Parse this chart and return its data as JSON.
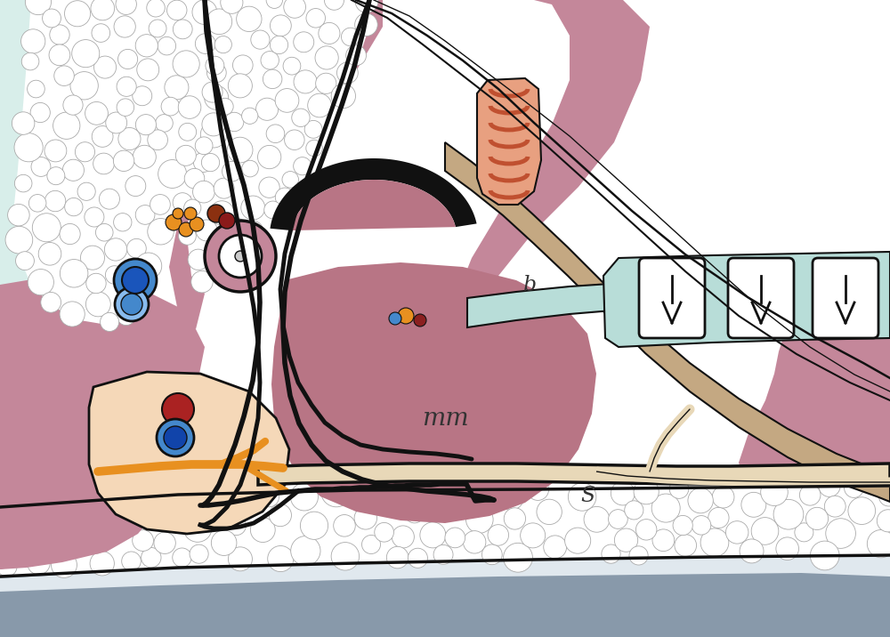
{
  "white_bg": "#ffffff",
  "teal_bg_light": "#d8eeea",
  "pink_tissue": "#c4879a",
  "dark_pink": "#b87585",
  "peach": "#f5d8b8",
  "tan_duct": "#c4a882",
  "light_tan": "#e8d8b8",
  "teal_strip": "#b8ddd8",
  "gray_bone": "#8899aa",
  "black_line": "#111111",
  "orange_color": "#e89020",
  "dark_orange": "#c06010",
  "dark_red": "#8b2020",
  "blue_color": "#4488cc",
  "dark_blue": "#1155aa",
  "light_blue": "#88ccee",
  "salmon_muscle": "#e8a080",
  "label_b": "b",
  "label_mm": "mm",
  "label_s": "S",
  "font_size": 18
}
